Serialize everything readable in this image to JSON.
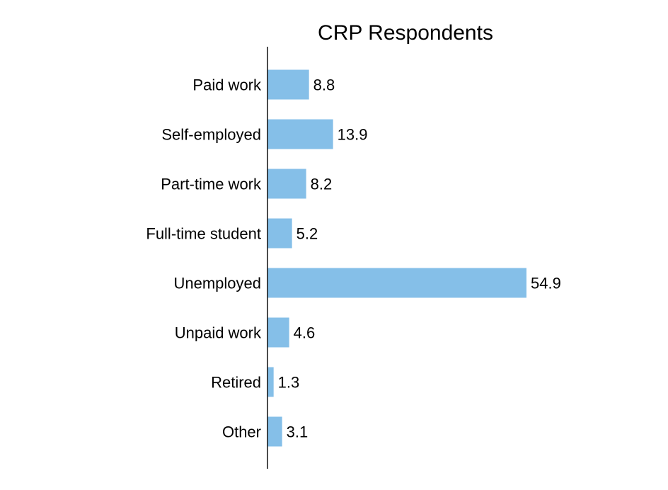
{
  "chart_data": {
    "type": "bar",
    "orientation": "horizontal",
    "title": "CRP Respondents",
    "xlabel": "",
    "ylabel": "",
    "categories": [
      "Paid work",
      "Self-employed",
      "Part-time work",
      "Full-time student",
      "Unemployed",
      "Unpaid work",
      "Retired",
      "Other"
    ],
    "values": [
      8.8,
      13.9,
      8.2,
      5.2,
      54.9,
      4.6,
      1.3,
      3.1
    ],
    "data_labels": [
      "8.8",
      "13.9",
      "8.2",
      "5.2",
      "54.9",
      "4.6",
      "1.3",
      "3.1"
    ],
    "xlim": [
      0,
      60
    ],
    "grid": false,
    "legend": "none",
    "bar_color": "#85bfe8",
    "axis_color": "#000000"
  }
}
